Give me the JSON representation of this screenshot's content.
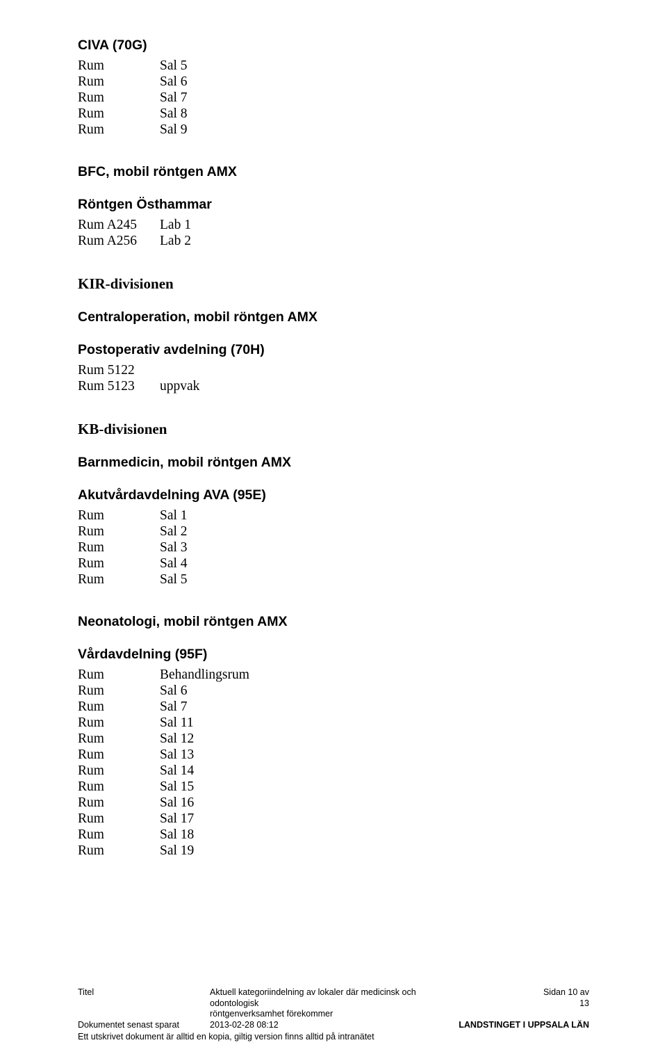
{
  "section1": {
    "heading": "CIVA (70G)",
    "rows": [
      {
        "l": "Rum",
        "r": "Sal 5"
      },
      {
        "l": "Rum",
        "r": "Sal 6"
      },
      {
        "l": "Rum",
        "r": "Sal 7"
      },
      {
        "l": "Rum",
        "r": "Sal 8"
      },
      {
        "l": "Rum",
        "r": "Sal 9"
      }
    ]
  },
  "section2": {
    "heading": "BFC, mobil röntgen AMX"
  },
  "section3": {
    "heading": "Röntgen Östhammar",
    "rows": [
      {
        "l": "Rum A245",
        "r": "Lab 1"
      },
      {
        "l": "Rum A256",
        "r": "Lab 2"
      }
    ]
  },
  "division1": "KIR-divisionen",
  "section4": {
    "heading": "Centraloperation, mobil röntgen AMX"
  },
  "section5": {
    "heading": "Postoperativ avdelning (70H)",
    "rows": [
      {
        "l": "Rum 5122",
        "r": ""
      },
      {
        "l": "Rum 5123",
        "r": "uppvak"
      }
    ]
  },
  "division2": "KB-divisionen",
  "section6": {
    "heading": "Barnmedicin, mobil röntgen AMX"
  },
  "section7": {
    "heading": "Akutvårdavdelning AVA (95E)",
    "rows": [
      {
        "l": "Rum",
        "r": "Sal 1"
      },
      {
        "l": "Rum",
        "r": "Sal 2"
      },
      {
        "l": "Rum",
        "r": "Sal 3"
      },
      {
        "l": "Rum",
        "r": "Sal 4"
      },
      {
        "l": "Rum",
        "r": "Sal 5"
      }
    ]
  },
  "section8": {
    "heading": "Neonatologi, mobil röntgen AMX"
  },
  "section9": {
    "heading": "Vårdavdelning (95F)",
    "rows": [
      {
        "l": "Rum",
        "r": "Behandlingsrum"
      },
      {
        "l": "Rum",
        "r": "Sal 6"
      },
      {
        "l": "Rum",
        "r": "Sal 7"
      },
      {
        "l": "Rum",
        "r": "Sal 11"
      },
      {
        "l": "Rum",
        "r": "Sal 12"
      },
      {
        "l": "Rum",
        "r": "Sal 13"
      },
      {
        "l": "Rum",
        "r": "Sal 14"
      },
      {
        "l": "Rum",
        "r": "Sal 15"
      },
      {
        "l": "Rum",
        "r": "Sal 16"
      },
      {
        "l": "Rum",
        "r": "Sal 17"
      },
      {
        "l": "Rum",
        "r": "Sal 18"
      },
      {
        "l": "Rum",
        "r": "Sal 19"
      }
    ]
  },
  "footer": {
    "titel_label": "Titel",
    "titel_value_line1": "Aktuell kategoriindelning av lokaler där medicinsk och odontologisk",
    "titel_value_line2": "röntgenverksamhet förekommer",
    "saved_label": "Dokumentet senast sparat",
    "saved_value": "2013-02-28 08:12",
    "page_line1": "Sidan 10 av",
    "page_line2": "13",
    "org": "LANDSTINGET I UPPSALA LÄN",
    "note": "Ett utskrivet dokument är alltid en kopia, giltig version finns alltid på intranätet"
  }
}
